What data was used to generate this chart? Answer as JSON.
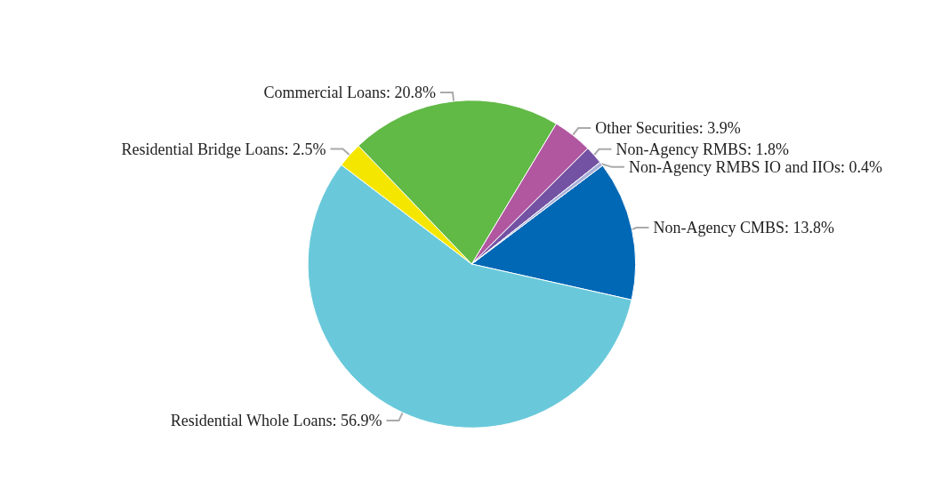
{
  "chart_data": {
    "type": "pie",
    "categories": [
      "Non-Agency CMBS",
      "Residential Whole Loans",
      "Residential Bridge Loans",
      "Commercial Loans",
      "Other Securities",
      "Non-Agency RMBS",
      "Non-Agency RMBS IO and IIOs"
    ],
    "values": [
      13.8,
      56.9,
      2.5,
      20.8,
      3.9,
      1.8,
      0.4
    ],
    "value_labels": [
      "13.8%",
      "56.9%",
      "2.5%",
      "20.8%",
      "3.9%",
      "1.8%",
      "0.4%"
    ],
    "colors": [
      "#0068b5",
      "#69c9db",
      "#f5e600",
      "#61b946",
      "#b157a0",
      "#7352a3",
      "#a9b0d9"
    ],
    "legend": false
  }
}
